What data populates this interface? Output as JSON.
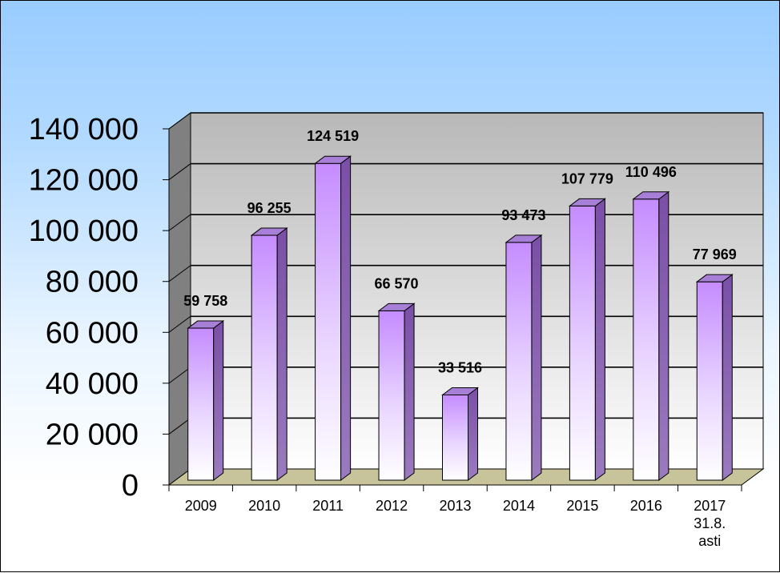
{
  "chart_data": {
    "type": "bar",
    "categories": [
      "2009",
      "2010",
      "2011",
      "2012",
      "2013",
      "2014",
      "2015",
      "2016",
      "2017\n31.8.\nasti"
    ],
    "values": [
      59758,
      96255,
      124519,
      66570,
      33516,
      93473,
      107779,
      110496,
      77969
    ],
    "data_labels": [
      "59 758",
      "96 255",
      "124 519",
      "66 570",
      "33 516",
      "93 473",
      "107 779",
      "110 496",
      "77 969"
    ],
    "title": "",
    "xlabel": "",
    "ylabel": "",
    "ylim": [
      0,
      140000
    ],
    "yticks": [
      {
        "value": 0,
        "label": "0"
      },
      {
        "value": 20000,
        "label": "20 000"
      },
      {
        "value": 40000,
        "label": "40 000"
      },
      {
        "value": 60000,
        "label": "60 000"
      },
      {
        "value": 80000,
        "label": "80 000"
      },
      {
        "value": 100000,
        "label": "100 000"
      },
      {
        "value": 120000,
        "label": "120 000"
      },
      {
        "value": 140000,
        "label": "140 000"
      }
    ],
    "grid": true,
    "legend": "none",
    "style": "3d-column",
    "colors": {
      "bar_top": "#cc99ff",
      "bar_bottom": "#ffffff",
      "bar_side": "#8e62b8",
      "bar_cap": "#a77fd6",
      "floor": "#c7c39a",
      "back_wall_top": "#bdbdbd",
      "back_wall_bottom": "#ffffff",
      "side_wall": "#808080"
    }
  }
}
